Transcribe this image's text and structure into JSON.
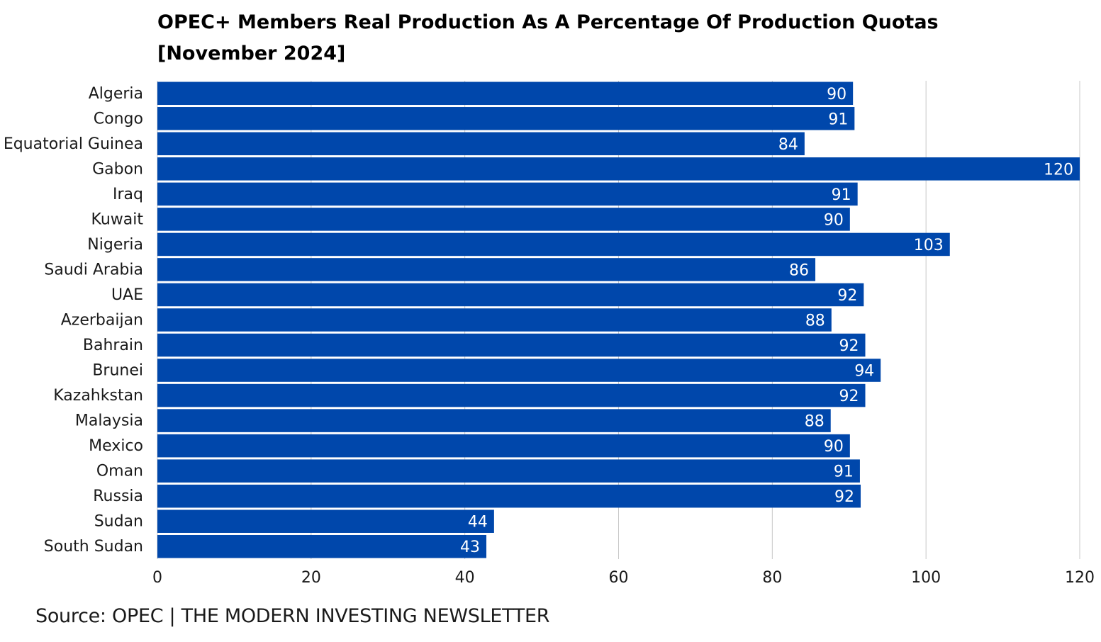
{
  "title_line1": "OPEC+ Members Real Production As A Percentage Of Production Quotas",
  "title_line2": "[November 2024]",
  "source": "Source: OPEC | THE MODERN INVESTING NEWSLETTER",
  "colors": {
    "bar": "#0047AB",
    "bar_label": "#ffffff",
    "grid": "#c8c8c8",
    "text": "#1a1a1a"
  },
  "chart_data": {
    "type": "bar",
    "orientation": "horizontal",
    "categories": [
      "Algeria",
      "Congo",
      "Equatorial Guinea",
      "Gabon",
      "Iraq",
      "Kuwait",
      "Nigeria",
      "Saudi Arabia",
      "UAE",
      "Azerbaijan",
      "Bahrain",
      "Brunei",
      "Kazahkstan",
      "Malaysia",
      "Mexico",
      "Oman",
      "Russia",
      "Sudan",
      "South Sudan"
    ],
    "values": [
      90.5,
      90.7,
      84.2,
      120,
      91.1,
      90.1,
      103.1,
      85.6,
      91.9,
      87.7,
      92.1,
      94.1,
      92.1,
      87.6,
      90.1,
      91.4,
      91.5,
      43.8,
      42.8
    ],
    "data_labels": [
      "90",
      "91",
      "84",
      "120",
      "91",
      "90",
      "103",
      "86",
      "92",
      "88",
      "92",
      "94",
      "92",
      "88",
      "90",
      "91",
      "92",
      "44",
      "43"
    ],
    "title": "OPEC+ Members Real Production As A Percentage Of Production Quotas [November 2024]",
    "xlabel": "",
    "ylabel": "",
    "xlim": [
      0,
      120
    ],
    "xticks": [
      0,
      20,
      40,
      60,
      80,
      100,
      120
    ],
    "grid": "vertical",
    "legend": "none"
  }
}
